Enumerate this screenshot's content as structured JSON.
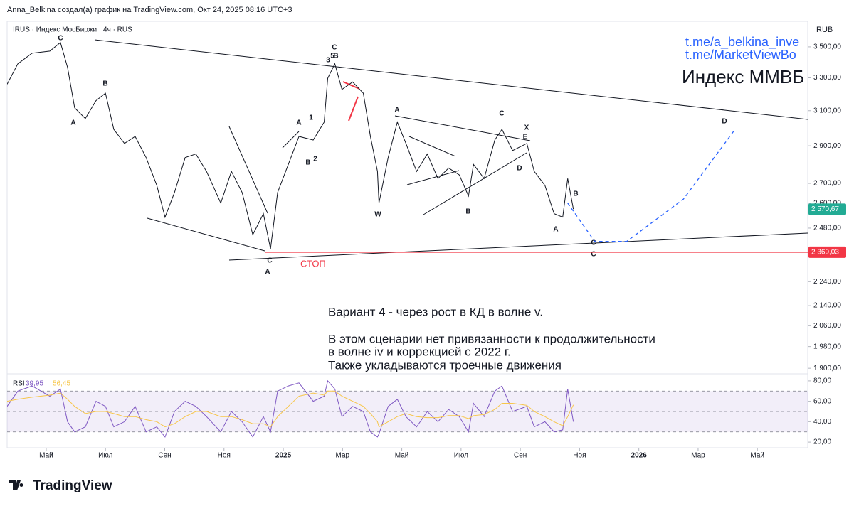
{
  "header": "Anna_Belkina создал(а) график на TradingView.com, Окт 24, 2025 08:16 UTC+3",
  "symbol": "IRUS · Индекс МосБиржи · 4ч · RUS",
  "currency": "RUB",
  "links": [
    "t.me/a_belkina_inve",
    "t.me/MarketViewBo"
  ],
  "chart_title": "Индекс ММВБ",
  "note": {
    "title": "Вариант 4 - через рост в КД в волне v.",
    "lines": [
      "В этом сценарии нет привязанности к продолжительности",
      "в волне iv и коррекцией с 2022 г.",
      "Также укладываются троечные движения"
    ]
  },
  "stop_label": "СТОП",
  "wave_labels": [
    "C",
    "A",
    "B",
    "3",
    "5",
    "B",
    "C",
    "A",
    "1",
    "B",
    "2",
    "A",
    "W",
    "B",
    "C",
    "X",
    "E",
    "D",
    "B",
    "A",
    "C",
    "C",
    "D",
    "C",
    "A"
  ],
  "logo": "TradingView",
  "chart_data": [
    {
      "type": "line",
      "log_scale": true,
      "grid": false,
      "x": [
        2.68,
        3.04,
        3.52,
        4.12,
        4.48,
        4.72,
        4.96,
        5.32,
        5.68,
        6.0,
        6.28,
        6.64,
        7.0,
        7.37,
        7.73,
        8.01,
        8.33,
        8.69,
        9.05,
        9.41,
        9.89,
        10.25,
        10.61,
        10.97,
        11.33,
        11.57,
        11.81,
        12.17,
        12.53,
        13.01,
        13.38,
        13.5,
        13.74,
        13.98,
        14.34,
        14.7,
        14.94,
        15.18,
        15.23,
        15.54,
        15.85,
        16.14,
        16.5,
        16.86,
        17.22,
        17.58,
        17.94,
        18.25,
        18.42,
        18.78,
        19.14,
        19.38,
        19.74,
        20.22,
        20.47,
        20.83,
        21.14,
        21.43,
        21.6,
        21.79
      ],
      "series": [
        {
          "color": "#131722",
          "values": [
            3260,
            3389,
            3458,
            3472,
            3529,
            3366,
            3117,
            3054,
            3160,
            3205,
            2992,
            2913,
            2952,
            2836,
            2690,
            2532,
            2654,
            2836,
            2855,
            2762,
            2601,
            2762,
            2654,
            2449,
            2549,
            2384,
            2654,
            2799,
            2952,
            2932,
            3033,
            3297,
            3389,
            3228,
            3274,
            3205,
            2952,
            2762,
            2601,
            2836,
            3033,
            2913,
            2762,
            2855,
            2725,
            2780,
            2744,
            2636,
            2799,
            2725,
            2932,
            2992,
            2874,
            2913,
            2762,
            2690,
            2549,
            2532,
            2725,
            2571
          ]
        },
        {
          "color": "#2962ff",
          "dashed": true,
          "x": [
            21.6,
            22.51,
            23.59,
            25.51,
            27.2
          ],
          "values": [
            2601,
            2418,
            2418,
            2621,
            2981
          ]
        }
      ],
      "xlim": [
        2.68,
        29.7
      ],
      "xticks": [
        {
          "value": 4,
          "label": "Май"
        },
        {
          "value": 6,
          "label": "Июл"
        },
        {
          "value": 8,
          "label": "Сен"
        },
        {
          "value": 10,
          "label": "Ноя"
        },
        {
          "value": 12,
          "label": "2025"
        },
        {
          "value": 14,
          "label": "Мар"
        },
        {
          "value": 16,
          "label": "Май"
        },
        {
          "value": 18,
          "label": "Июл"
        },
        {
          "value": 20,
          "label": "Сен"
        },
        {
          "value": 22,
          "label": "Ноя"
        },
        {
          "value": 24,
          "label": "2026"
        },
        {
          "value": 26,
          "label": "Мар"
        },
        {
          "value": 28,
          "label": "Май"
        }
      ],
      "ylim": [
        1880,
        3674
      ],
      "yticks": [
        {
          "value": 1900,
          "label": "1 900,00"
        },
        {
          "value": 1980,
          "label": "1 980,00"
        },
        {
          "value": 2060,
          "label": "2 060,00"
        },
        {
          "value": 2140,
          "label": "2 140,00"
        },
        {
          "value": 2240,
          "label": "2 240,00"
        },
        {
          "value": 2480,
          "label": "2 480,00"
        },
        {
          "value": 2600,
          "label": "2 600,00"
        },
        {
          "value": 2700,
          "label": "2 700,00"
        },
        {
          "value": 2900,
          "label": "2 900,00"
        },
        {
          "value": 3100,
          "label": "3 100,00"
        },
        {
          "value": 3300,
          "label": "3 300,00"
        },
        {
          "value": 3500,
          "label": "3 500,00"
        }
      ],
      "price_lines": [
        {
          "value": 2570.67,
          "label": "2 570,67",
          "color": "#22ab94"
        },
        {
          "value": 2369.03,
          "label": "2 369,03",
          "color": "#f23645",
          "line": true
        }
      ]
    },
    {
      "type": "line",
      "title": "RSI",
      "x": [
        2.68,
        3.04,
        3.52,
        4.12,
        4.48,
        4.72,
        4.96,
        5.32,
        5.68,
        6.0,
        6.28,
        6.64,
        7.0,
        7.37,
        7.73,
        8.01,
        8.33,
        8.69,
        9.05,
        9.41,
        9.89,
        10.25,
        10.61,
        10.97,
        11.33,
        11.57,
        11.81,
        12.17,
        12.53,
        13.01,
        13.38,
        13.5,
        13.74,
        13.98,
        14.34,
        14.7,
        14.94,
        15.18,
        15.23,
        15.54,
        15.85,
        16.14,
        16.5,
        16.86,
        17.22,
        17.58,
        17.94,
        18.25,
        18.42,
        18.78,
        19.14,
        19.38,
        19.74,
        20.22,
        20.47,
        20.83,
        21.14,
        21.43,
        21.6,
        21.79
      ],
      "series": [
        {
          "color": "#7e57c2",
          "label": "39,95",
          "values": [
            55,
            70,
            75,
            65,
            72,
            40,
            30,
            35,
            60,
            55,
            35,
            40,
            55,
            30,
            35,
            25,
            50,
            60,
            55,
            45,
            30,
            50,
            40,
            25,
            45,
            30,
            70,
            75,
            78,
            60,
            65,
            80,
            72,
            45,
            55,
            50,
            30,
            25,
            28,
            55,
            62,
            45,
            35,
            50,
            40,
            52,
            45,
            30,
            58,
            45,
            70,
            75,
            50,
            55,
            35,
            40,
            30,
            32,
            72,
            39.95
          ]
        },
        {
          "color": "#f7c64a",
          "label": "56,45",
          "values": [
            60,
            62,
            64,
            66,
            68,
            62,
            55,
            48,
            50,
            50,
            48,
            45,
            45,
            42,
            40,
            35,
            38,
            45,
            50,
            50,
            45,
            45,
            42,
            38,
            38,
            35,
            45,
            55,
            65,
            68,
            66,
            70,
            70,
            65,
            60,
            55,
            48,
            40,
            35,
            40,
            45,
            48,
            45,
            44,
            44,
            46,
            46,
            43,
            46,
            47,
            52,
            58,
            58,
            56,
            50,
            45,
            40,
            36,
            45,
            56.45
          ]
        }
      ],
      "ylim": [
        14.5,
        86.9
      ],
      "yticks": [
        {
          "value": 20,
          "label": "20,00"
        },
        {
          "value": 40,
          "label": "40,00"
        },
        {
          "value": 60,
          "label": "60,00"
        },
        {
          "value": 80,
          "label": "80,00"
        }
      ],
      "band": [
        30,
        70
      ],
      "levels": [
        30,
        50,
        70
      ]
    }
  ]
}
